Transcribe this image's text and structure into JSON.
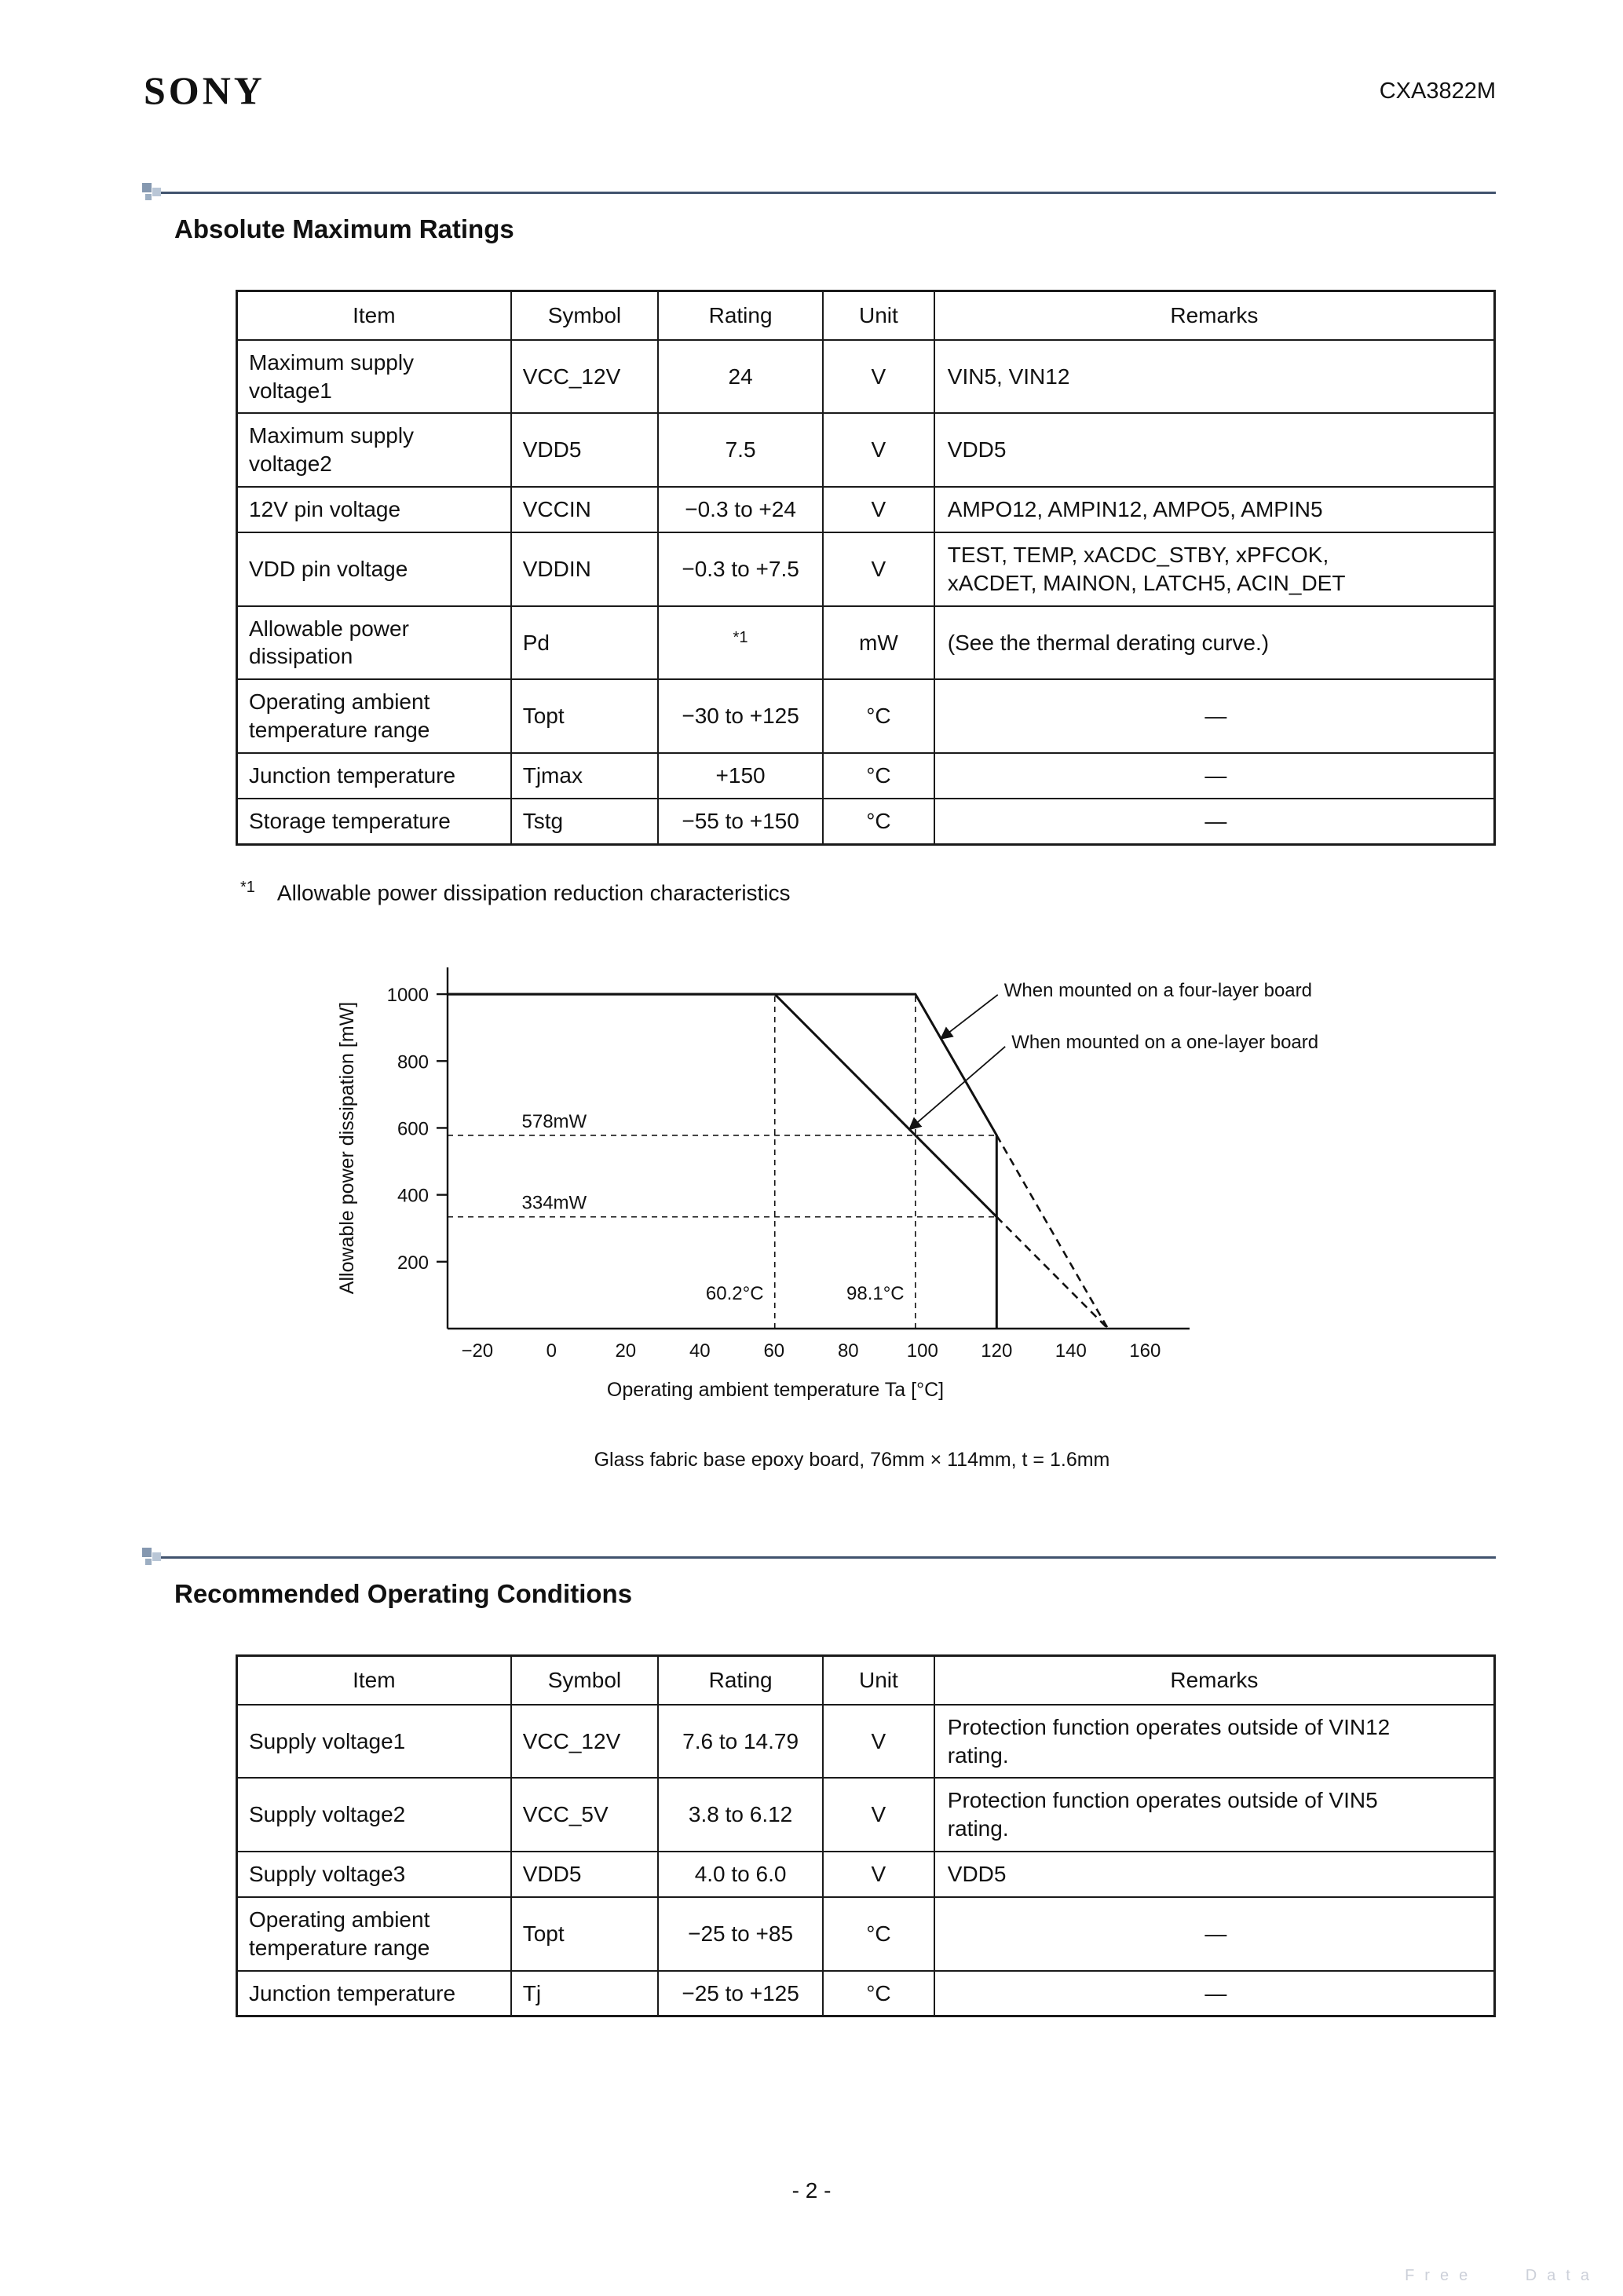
{
  "header": {
    "brand": "SONY",
    "doc_number": "CXA3822M"
  },
  "sections": {
    "abs_max": {
      "title": "Absolute Maximum Ratings",
      "table": {
        "headers": [
          "Item",
          "Symbol",
          "Rating",
          "Unit",
          "Remarks"
        ],
        "rows": [
          [
            "Maximum supply\nvoltage1",
            "VCC_12V",
            "24",
            "V",
            "VIN5, VIN12"
          ],
          [
            "Maximum supply\nvoltage2",
            "VDD5",
            "7.5",
            "V",
            "VDD5"
          ],
          [
            "12V pin voltage",
            "VCCIN",
            "−0.3 to +24",
            "V",
            "AMPO12, AMPIN12, AMPO5, AMPIN5"
          ],
          [
            "VDD pin voltage",
            "VDDIN",
            "−0.3 to +7.5",
            "V",
            "TEST, TEMP, xACDC_STBY, xPFCOK,\nxACDET, MAINON, LATCH5,  ACIN_DET"
          ],
          [
            "Allowable power\ndissipation",
            "Pd",
            "*1",
            "mW",
            "(See the thermal derating curve.)"
          ],
          [
            "Operating ambient\ntemperature range",
            "Topt",
            "−30 to +125",
            "°C",
            "—"
          ],
          [
            "Junction temperature",
            "Tjmax",
            "+150",
            "°C",
            "—"
          ],
          [
            "Storage temperature",
            "Tstg",
            "−55 to +150",
            "°C",
            "—"
          ]
        ]
      },
      "footnote_marker": "*1",
      "footnote_text": "Allowable power dissipation reduction characteristics"
    },
    "rec_op": {
      "title": "Recommended Operating Conditions",
      "table": {
        "headers": [
          "Item",
          "Symbol",
          "Rating",
          "Unit",
          "Remarks"
        ],
        "rows": [
          [
            "Supply voltage1",
            "VCC_12V",
            "7.6 to 14.79",
            "V",
            "Protection function operates outside of VIN12\nrating."
          ],
          [
            "Supply voltage2",
            "VCC_5V",
            "3.8 to 6.12",
            "V",
            "Protection function operates outside of VIN5\nrating."
          ],
          [
            "Supply voltage3",
            "VDD5",
            "4.0 to 6.0",
            "V",
            "VDD5"
          ],
          [
            "Operating ambient\ntemperature range",
            "Topt",
            "−25 to +85",
            "°C",
            "—"
          ],
          [
            "Junction temperature",
            "Tj",
            "−25 to +125",
            "°C",
            "—"
          ]
        ]
      }
    }
  },
  "chart_data": {
    "type": "line",
    "title": "",
    "xlabel": "Operating ambient temperature Ta [°C]",
    "ylabel": "Allowable power dissipation [mW]",
    "xlim": [
      -28,
      172
    ],
    "ylim": [
      0,
      1080
    ],
    "xticks": [
      -20,
      0,
      20,
      40,
      60,
      80,
      100,
      120,
      140,
      160
    ],
    "yticks": [
      200,
      400,
      600,
      800,
      1000
    ],
    "series": [
      {
        "name": "four-layer-board-line",
        "style": "solid",
        "points": [
          [
            -28,
            1000
          ],
          [
            98.1,
            1000
          ],
          [
            120,
            578
          ],
          [
            120,
            0
          ]
        ]
      },
      {
        "name": "one-layer-board-line",
        "style": "solid",
        "points": [
          [
            -28,
            1000
          ],
          [
            60.2,
            1000
          ],
          [
            120,
            334
          ]
        ]
      },
      {
        "name": "four-layer-extrapolation",
        "style": "dashed",
        "points": [
          [
            120,
            578
          ],
          [
            150,
            0
          ]
        ]
      },
      {
        "name": "one-layer-extrapolation",
        "style": "dashed",
        "points": [
          [
            120,
            334
          ],
          [
            150,
            0
          ]
        ]
      }
    ],
    "ref_h": [
      {
        "y": 578,
        "label": "578mW",
        "x_to": 120
      },
      {
        "y": 334,
        "label": "334mW",
        "x_to": 120
      }
    ],
    "ref_v": [
      {
        "x": 60.2,
        "label": "60.2°C",
        "y_to": 1000
      },
      {
        "x": 98.1,
        "label": "98.1°C",
        "y_to": 1000
      }
    ],
    "annotations": [
      {
        "text": "When mounted on a four-layer board",
        "text_xy": [
          122,
          1010
        ],
        "target_xy": [
          105,
          867
        ]
      },
      {
        "text": "When mounted on a one-layer board",
        "text_xy": [
          124,
          855
        ],
        "target_xy": [
          96.5,
          596
        ]
      }
    ],
    "caption": "Glass fabric base epoxy board, 76mm × 114mm, t = 1.6mm"
  },
  "footer": {
    "page_number": "- 2 -",
    "watermark": "Free Data"
  }
}
